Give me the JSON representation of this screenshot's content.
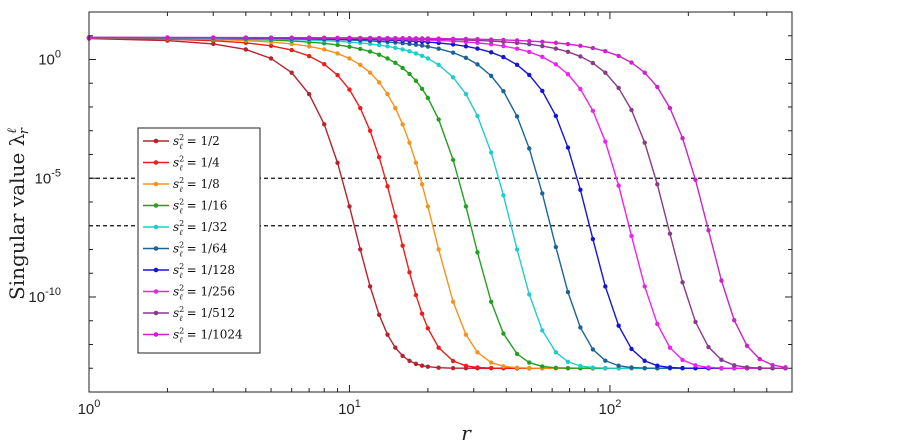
{
  "chart_data": {
    "type": "line",
    "xscale": "log",
    "yscale": "log",
    "xlim": [
      1,
      500
    ],
    "ylim": [
      1e-14,
      100.0
    ],
    "xlabel": "r",
    "ylabel": "Singular value λ",
    "ylabel_symbol": "λ",
    "ylabel_super": "ℓ",
    "ylabel_sub": "r",
    "xticks": [
      {
        "value": 1,
        "label": "10",
        "exp": "0"
      },
      {
        "value": 10,
        "label": "10",
        "exp": "1"
      },
      {
        "value": 100,
        "label": "10",
        "exp": "2"
      }
    ],
    "yticks": [
      {
        "value": 1,
        "label": "10",
        "exp": "0"
      },
      {
        "value": 1e-05,
        "label": "10",
        "exp": "-5"
      },
      {
        "value": 1e-10,
        "label": "10",
        "exp": "-10"
      }
    ],
    "hlines": [
      1e-05,
      1e-07
    ],
    "legend_position": "center-left",
    "floor": 1e-13,
    "top": 10,
    "series": [
      {
        "name": "1/2",
        "color": "#b5232f",
        "knee": 1.5,
        "steep": 6.6
      },
      {
        "name": "1/4",
        "color": "#ee1c1c",
        "knee": 2.2,
        "steep": 6.6
      },
      {
        "name": "1/8",
        "color": "#f7921e",
        "knee": 3.0,
        "steep": 6.6
      },
      {
        "name": "1/16",
        "color": "#22a022",
        "knee": 4.2,
        "steep": 6.6
      },
      {
        "name": "1/32",
        "color": "#22cccc",
        "knee": 6.0,
        "steep": 6.6
      },
      {
        "name": "1/64",
        "color": "#1c6496",
        "knee": 8.5,
        "steep": 6.6
      },
      {
        "name": "1/128",
        "color": "#1414d8",
        "knee": 12.0,
        "steep": 6.6
      },
      {
        "name": "1/256",
        "color": "#ee22ee",
        "knee": 17.0,
        "steep": 6.6
      },
      {
        "name": "1/512",
        "color": "#8a3a8a",
        "knee": 24.0,
        "steep": 6.6
      },
      {
        "name": "1/1024",
        "color": "#cc22cc",
        "knee": 34.0,
        "steep": 6.6
      }
    ]
  }
}
